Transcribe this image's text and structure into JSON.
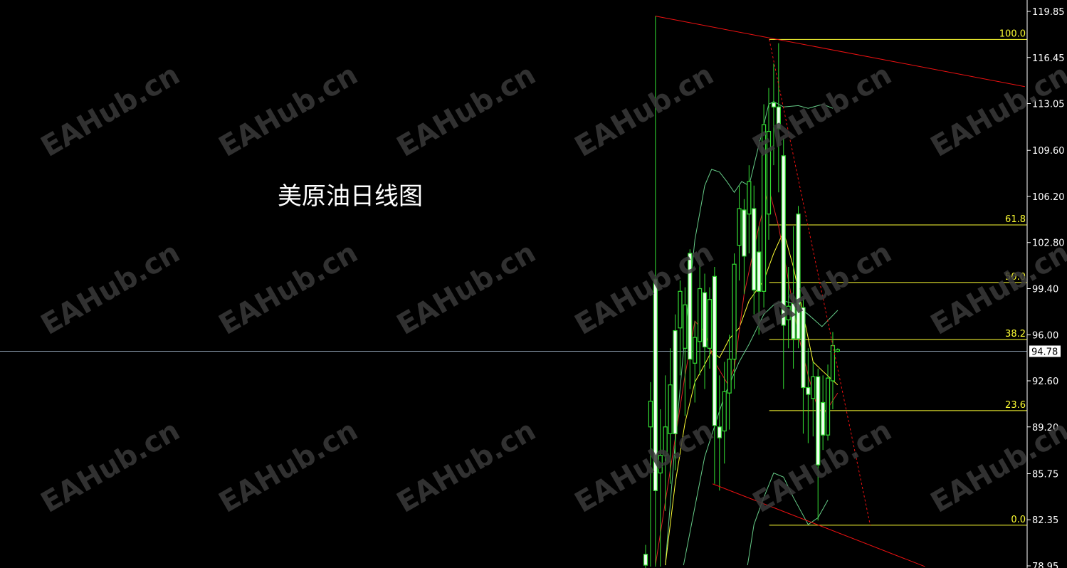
{
  "title": "美原油日线图",
  "watermark": "EAHub.cn",
  "chart_data": {
    "type": "candlestick",
    "title": "美原油日线图",
    "ylim": [
      78.95,
      119.85
    ],
    "yticks": [
      "119.85",
      "116.45",
      "113.05",
      "109.60",
      "106.20",
      "102.80",
      "99.40",
      "96.00",
      "92.60",
      "89.20",
      "85.75",
      "82.35",
      "78.95"
    ],
    "current_price": "94.78",
    "colors": {
      "background": "#000000",
      "candle": "#33dd33",
      "candle_fill": "#f0fff0",
      "ma_fast": "#dd2222",
      "ma_slow": "#ffff33",
      "bands": "#66cc88",
      "trendline": "#ee1111",
      "fib": "#ffff33",
      "price_line": "#8899aa"
    },
    "candles": [
      [
        79.0,
        80.5,
        78.5,
        79.8
      ],
      [
        91.1,
        92.5,
        78.9,
        89.2
      ],
      [
        84.5,
        119.5,
        78.9,
        100.1
      ],
      [
        87.1,
        90.5,
        78.9,
        85.8
      ],
      [
        89.2,
        93.0,
        83.0,
        87.1
      ],
      [
        92.3,
        95.0,
        85.0,
        88.7
      ],
      [
        88.7,
        97.5,
        86.0,
        96.3
      ],
      [
        99.2,
        100.0,
        93.0,
        96.5
      ],
      [
        98.2,
        99.5,
        90.0,
        95.0
      ],
      [
        94.2,
        102.3,
        92.0,
        102.0
      ],
      [
        95.8,
        97.0,
        91.0,
        93.9
      ],
      [
        99.4,
        101.5,
        93.0,
        95.5
      ],
      [
        95.1,
        100.5,
        92.0,
        99.1
      ],
      [
        98.6,
        99.5,
        93.5,
        95.0
      ],
      [
        89.3,
        101.0,
        85.0,
        100.3
      ],
      [
        88.4,
        93.0,
        84.5,
        89.2
      ],
      [
        91.8,
        94.0,
        86.5,
        88.9
      ],
      [
        94.2,
        96.0,
        89.0,
        91.7
      ],
      [
        101.2,
        102.0,
        92.0,
        94.2
      ],
      [
        105.3,
        107.0,
        100.0,
        102.6
      ],
      [
        101.8,
        106.0,
        99.0,
        105.2
      ],
      [
        107.3,
        108.5,
        102.0,
        104.9
      ],
      [
        99.3,
        107.0,
        97.5,
        105.3
      ],
      [
        99.2,
        104.0,
        96.0,
        102.1
      ],
      [
        111.5,
        113.0,
        98.0,
        99.2
      ],
      [
        111.0,
        114.2,
        103.0,
        104.9
      ],
      [
        112.8,
        116.0,
        108.5,
        113.1
      ],
      [
        111.2,
        117.5,
        106.5,
        112.8
      ],
      [
        96.7,
        110.5,
        92.0,
        109.2
      ],
      [
        98.1,
        101.0,
        95.0,
        97.1
      ],
      [
        95.7,
        104.0,
        93.5,
        98.3
      ],
      [
        95.7,
        105.5,
        95.0,
        104.9
      ],
      [
        92.1,
        98.7,
        88.7,
        98.0
      ],
      [
        91.6,
        95.0,
        88.0,
        92.1
      ],
      [
        92.9,
        94.0,
        88.5,
        91.3
      ],
      [
        86.4,
        93.5,
        82.3,
        92.9
      ],
      [
        88.6,
        93.0,
        87.5,
        91.0
      ],
      [
        92.8,
        93.8,
        88.2,
        88.6
      ],
      [
        95.2,
        96.2,
        90.5,
        92.6
      ],
      [
        94.9,
        95.0,
        94.7,
        94.78
      ]
    ],
    "ma_fast": [
      [
        2,
        79
      ],
      [
        5,
        86
      ],
      [
        8,
        93
      ],
      [
        10,
        97
      ],
      [
        12,
        96.2
      ],
      [
        14,
        94
      ],
      [
        16.6,
        92.4
      ],
      [
        18,
        93.5
      ],
      [
        20,
        99
      ],
      [
        23,
        104
      ],
      [
        25,
        106.8
      ],
      [
        27,
        104
      ],
      [
        29,
        100
      ],
      [
        31,
        96
      ],
      [
        33,
        93
      ],
      [
        35,
        90.5
      ],
      [
        36.5,
        90.3
      ],
      [
        39,
        91.7
      ]
    ],
    "ma_slow": [
      [
        4,
        79
      ],
      [
        6,
        85
      ],
      [
        8,
        89.5
      ],
      [
        10,
        92.5
      ],
      [
        12,
        93.8
      ],
      [
        13.4,
        94.8
      ],
      [
        15,
        94.3
      ],
      [
        17,
        95.7
      ],
      [
        19,
        96.5
      ],
      [
        21,
        98.5
      ],
      [
        24,
        100
      ],
      [
        26,
        102
      ],
      [
        28,
        103.6
      ],
      [
        30,
        101
      ],
      [
        32,
        97.5
      ],
      [
        34,
        94
      ],
      [
        36,
        93.3
      ],
      [
        39,
        92.3
      ]
    ],
    "band_upper": [
      [
        4,
        79
      ],
      [
        6,
        88
      ],
      [
        8,
        96
      ],
      [
        10,
        103
      ],
      [
        12,
        107
      ],
      [
        13.4,
        108.2
      ],
      [
        15,
        108
      ],
      [
        16.5,
        107.3
      ],
      [
        18,
        106.5
      ],
      [
        19.5,
        107.3
      ],
      [
        21,
        107
      ],
      [
        23,
        110
      ],
      [
        25,
        113
      ],
      [
        26,
        113.2
      ],
      [
        28,
        112.8
      ],
      [
        31,
        112.9
      ],
      [
        33,
        112.7
      ],
      [
        36,
        113
      ],
      [
        38,
        112.7
      ]
    ],
    "band_middle": [
      [
        7.7,
        79
      ],
      [
        12,
        87
      ],
      [
        16,
        91.5
      ],
      [
        19,
        94
      ],
      [
        21,
        95.3
      ],
      [
        24,
        97.5
      ],
      [
        26,
        98.2
      ],
      [
        28,
        98.5
      ],
      [
        30,
        98.3
      ],
      [
        33,
        97.5
      ],
      [
        35.8,
        96.6
      ],
      [
        39,
        97.8
      ]
    ],
    "band_lower": [
      [
        20.7,
        79
      ],
      [
        22,
        82
      ],
      [
        24,
        84
      ],
      [
        26,
        85.8
      ],
      [
        28,
        85.5
      ],
      [
        30,
        84
      ],
      [
        33,
        82
      ],
      [
        35,
        82.5
      ],
      [
        37,
        83.8
      ]
    ],
    "trendlines": [
      {
        "from": [
          2,
          119.5
        ],
        "to": [
          77,
          114.3
        ],
        "style": "solid"
      },
      {
        "from": [
          13.6,
          85.0
        ],
        "to": [
          56.7,
          78.9
        ],
        "style": "solid"
      },
      {
        "from": [
          25.1,
          117.78
        ],
        "to": [
          45.6,
          81.95
        ],
        "style": "dotted"
      }
    ],
    "fib_start_bar": 25.1,
    "fib_levels": [
      {
        "label": "100.0",
        "price": 117.78
      },
      {
        "label": "61.8",
        "price": 104.1
      },
      {
        "label": "50.0",
        "price": 99.85
      },
      {
        "label": "38.2",
        "price": 95.65
      },
      {
        "label": "23.6",
        "price": 90.4
      },
      {
        "label": "0.0",
        "price": 81.95
      }
    ]
  }
}
